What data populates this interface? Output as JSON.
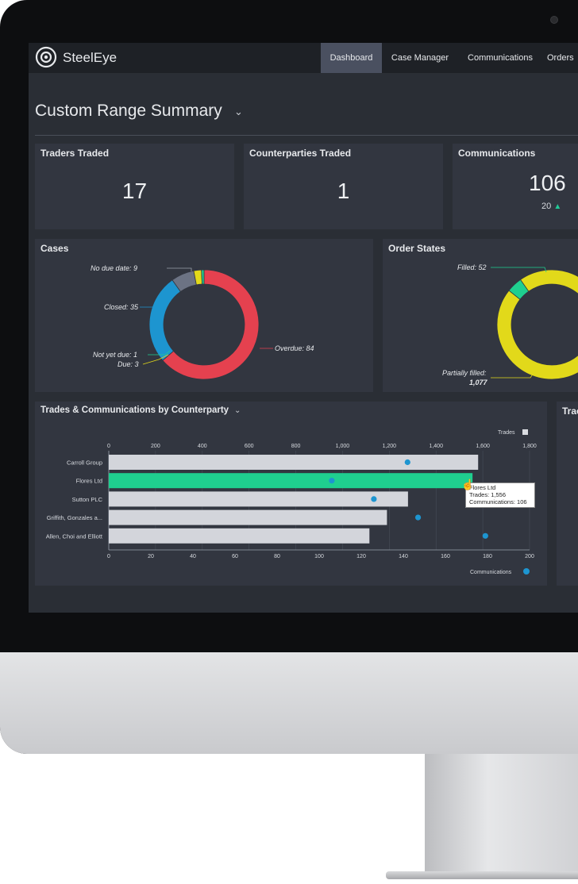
{
  "app": {
    "brand": "SteelEye"
  },
  "nav": {
    "items": [
      "Dashboard",
      "Case Manager",
      "Communications",
      "Orders"
    ],
    "active": "Dashboard"
  },
  "page": {
    "title": "Custom Range Summary"
  },
  "stats": {
    "traders": {
      "title": "Traders Traded",
      "value": "17"
    },
    "counterparties": {
      "title": "Counterparties Traded",
      "value": "1"
    },
    "communications": {
      "title": "Communications",
      "value": "106",
      "delta": "20"
    }
  },
  "cases": {
    "title": "Cases",
    "labels": {
      "no_due": "No due date: 9",
      "closed": "Closed: 35",
      "not_yet_due": "Not yet due: 1",
      "due": "Due: 3",
      "overdue": "Overdue: 84"
    }
  },
  "order_states": {
    "title": "Order States",
    "labels": {
      "filled": "Filled: 52",
      "partially_filled": "Partially filled:",
      "partially_filled_value": "1,077"
    }
  },
  "trades_comms": {
    "title": "Trades & Communications by Counterparty",
    "next_panel_title": "Trac",
    "legend_trades": "Trades",
    "legend_comms": "Communications",
    "top_ticks": [
      "0",
      "200",
      "400",
      "600",
      "800",
      "1,000",
      "1,200",
      "1,400",
      "1,600",
      "1,800"
    ],
    "bottom_ticks": [
      "0",
      "20",
      "40",
      "60",
      "80",
      "100",
      "120",
      "140",
      "160",
      "180",
      "200"
    ],
    "tooltip": {
      "name": "Flores Ltd",
      "trades": "Trades: 1,556",
      "comms": "Communications: 106"
    }
  },
  "colors": {
    "accent_green": "#1fcf8f",
    "red": "#e5414f",
    "blue": "#1d95d0",
    "yellow": "#e2d91a",
    "grey": "#6c7384"
  },
  "chart_data": [
    {
      "type": "pie",
      "title": "Cases",
      "categories": [
        "Overdue",
        "Closed",
        "No due date",
        "Due",
        "Not yet due"
      ],
      "values": [
        84,
        35,
        9,
        3,
        1
      ]
    },
    {
      "type": "pie",
      "title": "Order States",
      "categories": [
        "Partially filled",
        "Filled"
      ],
      "values": [
        1077,
        52
      ]
    },
    {
      "type": "bar",
      "title": "Trades & Communications by Counterparty",
      "categories": [
        "Carroll Group",
        "Flores Ltd",
        "Sutton PLC",
        "Griffith, Gonzales a...",
        "Allen, Choi and Elliott"
      ],
      "series": [
        {
          "name": "Trades",
          "values": [
            1580,
            1556,
            1280,
            1190,
            1115
          ]
        },
        {
          "name": "Communications",
          "values": [
            142,
            106,
            126,
            147,
            179
          ]
        }
      ],
      "x_trades_lim": [
        0,
        1800
      ],
      "x_comms_lim": [
        0,
        200
      ]
    }
  ]
}
